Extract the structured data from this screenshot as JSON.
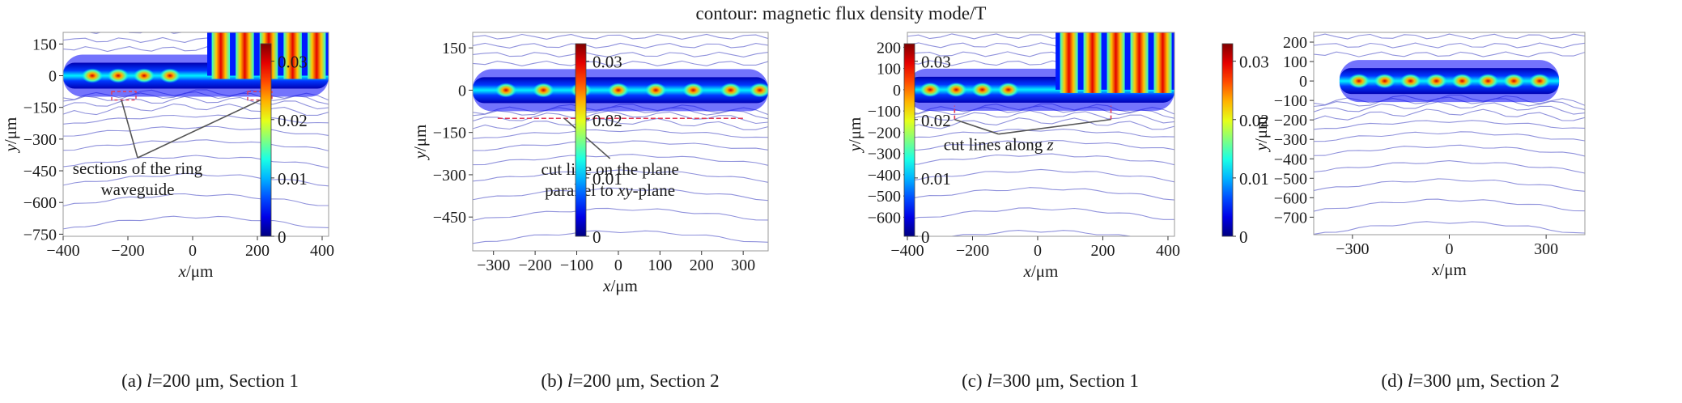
{
  "figure": {
    "title": "contour: magnetic flux density mode/T"
  },
  "chart_data": [
    {
      "type": "heatmap",
      "panel_id": "a",
      "caption_prefix": "(a) ",
      "caption_var": "l",
      "caption_rest": "=200 μm, Section 1",
      "xlabel": "x/μm",
      "ylabel": "y/μm",
      "xlim": [
        -400,
        420
      ],
      "ylim": [
        -760,
        205
      ],
      "xticks": [
        -400,
        -200,
        0,
        200,
        400
      ],
      "yticks": [
        150,
        0,
        -150,
        -300,
        -450,
        -600,
        -750
      ],
      "colorbar": {
        "ticks": [
          "0.03",
          "0.02",
          "0.01",
          "0"
        ],
        "range": [
          0,
          0.033
        ],
        "colormap": "jet"
      },
      "waveguide_band": {
        "y_center": 0,
        "x_range": [
          -400,
          420
        ]
      },
      "hotspots_x": [
        -310,
        -230,
        -150,
        -70
      ],
      "vertical_stripes": {
        "x_range": [
          50,
          420
        ],
        "y_top": 205,
        "count": 5
      },
      "markers": [
        {
          "kind": "box",
          "x": [
            -250,
            -175
          ],
          "y": [
            -115,
            -75
          ]
        },
        {
          "kind": "box",
          "x": [
            170,
            245
          ],
          "y": [
            -115,
            -75
          ]
        }
      ],
      "annotation": {
        "lines": [
          "sections of the ring",
          "waveguide"
        ],
        "arrow_targets": [
          [
            -220,
            -115
          ],
          [
            210,
            -115
          ]
        ],
        "text_anchor": [
          -170,
          -465
        ]
      }
    },
    {
      "type": "heatmap",
      "panel_id": "b",
      "caption_prefix": "(b) ",
      "caption_var": "l",
      "caption_rest": "=200 μm, Section 2",
      "xlabel": "x/μm",
      "ylabel": "y/μm",
      "xlim": [
        -350,
        360
      ],
      "ylim": [
        -570,
        205
      ],
      "xticks": [
        -300,
        -200,
        -100,
        0,
        100,
        200,
        300
      ],
      "yticks": [
        150,
        0,
        -150,
        -300,
        -450
      ],
      "colorbar": {
        "ticks": [
          "0.03",
          "0.02",
          "0.01",
          "0"
        ],
        "range": [
          0,
          0.033
        ],
        "colormap": "jet"
      },
      "waveguide_band": {
        "y_center": 0,
        "x_range": [
          -350,
          360
        ]
      },
      "hotspots_x": [
        -270,
        -180,
        -90,
        0,
        90,
        180,
        270,
        340
      ],
      "markers": [
        {
          "kind": "hline",
          "x": [
            -290,
            300
          ],
          "y": -100
        }
      ],
      "annotation": {
        "lines": [
          "cut line on the plane",
          "parallel to |xy|-plane"
        ],
        "arrow_targets": [
          [
            -130,
            -100
          ]
        ],
        "text_anchor": [
          -20,
          -300
        ]
      }
    },
    {
      "type": "heatmap",
      "panel_id": "c",
      "caption_prefix": "(c) ",
      "caption_var": "l",
      "caption_rest": "=300 μm, Section 1",
      "xlabel": "x/μm",
      "ylabel": "y/μm",
      "xlim": [
        -400,
        420
      ],
      "ylim": [
        -690,
        270
      ],
      "xticks": [
        -400,
        -200,
        0,
        200,
        400
      ],
      "yticks": [
        200,
        100,
        0,
        -100,
        -200,
        -300,
        -400,
        -500,
        -600
      ],
      "colorbar": {
        "ticks": [
          "0.03",
          "0.02",
          "0.01",
          "0"
        ],
        "range": [
          0,
          0.033
        ],
        "colormap": "jet"
      },
      "waveguide_band": {
        "y_center": 0,
        "x_range": [
          -400,
          420
        ]
      },
      "hotspots_x": [
        -330,
        -250,
        -170,
        -90
      ],
      "vertical_stripes": {
        "x_range": [
          60,
          420
        ],
        "y_top": 270,
        "count": 5
      },
      "markers": [
        {
          "kind": "vline",
          "x": -255,
          "y": [
            -140,
            -75
          ]
        },
        {
          "kind": "vline",
          "x": 225,
          "y": [
            -140,
            -75
          ]
        }
      ],
      "annotation": {
        "lines": [
          "cut lines along |z|"
        ],
        "arrow_targets": [
          [
            -255,
            -140
          ],
          [
            225,
            -140
          ]
        ],
        "text_anchor": [
          -120,
          -285
        ]
      }
    },
    {
      "type": "heatmap",
      "panel_id": "d",
      "caption_prefix": "(d) ",
      "caption_var": "l",
      "caption_rest": "=300 μm, Section 2",
      "xlabel": "x/μm",
      "ylabel": "y/μm",
      "xlim": [
        -420,
        420
      ],
      "ylim": [
        -790,
        250
      ],
      "xticks": [
        -300,
        0,
        300
      ],
      "yticks": [
        200,
        100,
        0,
        -100,
        -200,
        -300,
        -400,
        -500,
        -600,
        -700
      ],
      "colorbar": {
        "ticks": [
          "0.03",
          "0.02",
          "0.01",
          "0"
        ],
        "range": [
          0,
          0.033
        ],
        "colormap": "jet"
      },
      "waveguide_band": {
        "y_center": 0,
        "x_range": [
          -340,
          340
        ]
      },
      "hotspots_x": [
        -280,
        -200,
        -120,
        -40,
        40,
        120,
        200,
        280
      ],
      "markers": [],
      "annotation": null
    }
  ]
}
